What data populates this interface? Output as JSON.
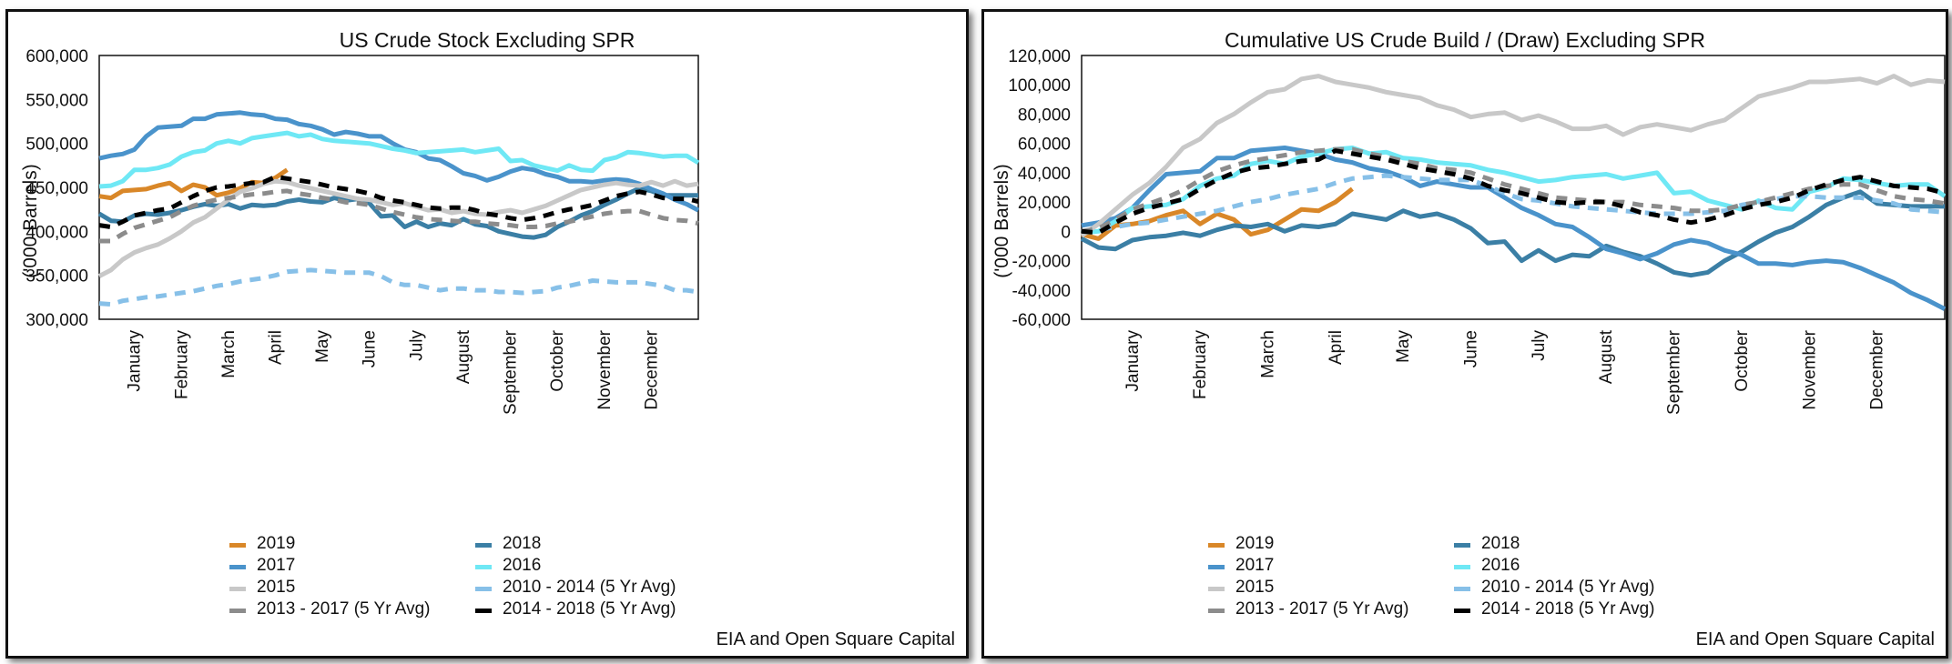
{
  "chart_data": [
    {
      "type": "line",
      "title": "US Crude Stock Excluding SPR",
      "ylabel": "('000 Barrels)",
      "xlabel": "",
      "source": "EIA and Open Square Capital",
      "ylim": [
        300000,
        600000
      ],
      "yticks": [
        "600,000",
        "550,000",
        "500,000",
        "450,000",
        "400,000",
        "350,000",
        "300,000"
      ],
      "ytick_values": [
        600000,
        550000,
        500000,
        450000,
        400000,
        350000,
        300000
      ],
      "x_range": [
        1,
        52
      ],
      "month_labels": [
        "January",
        "February",
        "March",
        "April",
        "May",
        "June",
        "July",
        "August",
        "September",
        "October",
        "November",
        "December"
      ],
      "month_weeks": [
        4,
        8,
        12,
        16,
        20,
        24,
        28,
        32,
        36,
        40,
        44,
        48
      ],
      "grid": false,
      "legend_position": "bottom",
      "series": [
        {
          "name": "2019",
          "color": "#d98728",
          "dash": "solid",
          "values": [
            440000,
            438000,
            446000,
            447000,
            448000,
            452000,
            455000,
            446000,
            453000,
            450000,
            441000,
            444000,
            449000,
            456000,
            455000,
            461000,
            470000
          ]
        },
        {
          "name": "2018",
          "color": "#3b7fa5",
          "dash": "solid",
          "values": [
            420000,
            412000,
            411000,
            418000,
            420000,
            419000,
            421000,
            424000,
            428000,
            431000,
            429000,
            431000,
            426000,
            430000,
            429000,
            430000,
            434000,
            436000,
            434000,
            433000,
            438000,
            435000,
            437000,
            432000,
            417000,
            418000,
            405000,
            411000,
            405000,
            409000,
            407000,
            414000,
            408000,
            406000,
            400000,
            397000,
            394000,
            393000,
            396000,
            405000,
            411000,
            418000,
            423000,
            430000,
            436000,
            443000,
            449000,
            446000,
            441000,
            441000,
            441000,
            441000
          ]
        },
        {
          "name": "2017",
          "color": "#4a93cb",
          "dash": "solid",
          "values": [
            483000,
            486000,
            488000,
            493000,
            508000,
            518000,
            519000,
            520000,
            528000,
            528000,
            533000,
            534000,
            535000,
            533000,
            532000,
            528000,
            527000,
            522000,
            520000,
            516000,
            510000,
            513000,
            511000,
            508000,
            508000,
            500000,
            493000,
            490000,
            483000,
            481000,
            474000,
            466000,
            463000,
            458000,
            462000,
            468000,
            472000,
            470000,
            465000,
            462000,
            457000,
            457000,
            456000,
            458000,
            459000,
            458000,
            454000,
            448000,
            443000,
            436000,
            431000,
            424000
          ]
        },
        {
          "name": "2016",
          "color": "#6fe8f5",
          "dash": "solid",
          "values": [
            451000,
            452000,
            457000,
            470000,
            470000,
            472000,
            476000,
            485000,
            490000,
            492000,
            500000,
            503000,
            500000,
            506000,
            508000,
            510000,
            512000,
            508000,
            510000,
            505000,
            503000,
            502000,
            501000,
            500000,
            497000,
            494000,
            492000,
            489000,
            490000,
            491000,
            492000,
            493000,
            490000,
            492000,
            494000,
            480000,
            481000,
            475000,
            472000,
            469000,
            475000,
            470000,
            469000,
            481000,
            484000,
            490000,
            489000,
            487000,
            485000,
            486000,
            486000,
            478000
          ]
        },
        {
          "name": "2015",
          "color": "#c8c8c8",
          "dash": "solid",
          "values": [
            349000,
            356000,
            368000,
            376000,
            381000,
            385000,
            392000,
            400000,
            410000,
            416000,
            426000,
            436000,
            445000,
            449000,
            454000,
            457000,
            456000,
            452000,
            449000,
            446000,
            443000,
            440000,
            437000,
            436000,
            433000,
            430000,
            432000,
            428000,
            424000,
            425000,
            421000,
            423000,
            420000,
            419000,
            422000,
            424000,
            421000,
            425000,
            429000,
            435000,
            441000,
            447000,
            450000,
            453000,
            455000,
            453000,
            452000,
            456000,
            452000,
            457000,
            452000,
            454000
          ]
        },
        {
          "name": "2010 - 2014  (5 Yr Avg)",
          "color": "#87c0e8",
          "dash": "dashed",
          "values": [
            318000,
            317000,
            321000,
            323000,
            325000,
            326000,
            328000,
            330000,
            332000,
            335000,
            338000,
            340000,
            343000,
            345000,
            347000,
            350000,
            354000,
            355000,
            356000,
            355000,
            354000,
            353000,
            353000,
            353000,
            349000,
            342000,
            339000,
            339000,
            336000,
            333000,
            335000,
            335000,
            333000,
            333000,
            331000,
            331000,
            330000,
            331000,
            332000,
            336000,
            338000,
            341000,
            344000,
            343000,
            342000,
            342000,
            342000,
            340000,
            338000,
            333000,
            333000,
            331000
          ]
        },
        {
          "name": "2013 - 2017 (5 Yr Avg)",
          "color": "#8c8c8c",
          "dash": "dashed",
          "values": [
            389000,
            389000,
            397000,
            404000,
            408000,
            412000,
            416000,
            423000,
            429000,
            433000,
            436000,
            438000,
            440000,
            442000,
            443000,
            445000,
            446000,
            443000,
            441000,
            438000,
            436000,
            433000,
            432000,
            430000,
            426000,
            422000,
            419000,
            416000,
            414000,
            413000,
            412000,
            411000,
            411000,
            409000,
            408000,
            407000,
            405000,
            405000,
            406000,
            409000,
            411000,
            414000,
            417000,
            420000,
            422000,
            423000,
            423000,
            419000,
            415000,
            413000,
            412000,
            409000
          ]
        },
        {
          "name": "2014 - 2018 (5 Yr Avg)",
          "color": "#000000",
          "dash": "dashed",
          "values": [
            407000,
            405000,
            411000,
            418000,
            421000,
            424000,
            426000,
            433000,
            440000,
            446000,
            450000,
            451000,
            453000,
            455000,
            456000,
            462000,
            460000,
            458000,
            456000,
            453000,
            450000,
            448000,
            446000,
            443000,
            438000,
            435000,
            433000,
            430000,
            427000,
            426000,
            427000,
            427000,
            424000,
            420000,
            418000,
            415000,
            413000,
            415000,
            418000,
            422000,
            425000,
            427000,
            430000,
            435000,
            440000,
            443000,
            445000,
            442000,
            438000,
            437000,
            437000,
            434000
          ]
        }
      ]
    },
    {
      "type": "line",
      "title": "Cumulative US Crude Build / (Draw) Excluding SPR",
      "ylabel": "('000 Barrels)",
      "xlabel": "",
      "source": "EIA and Open Square Capital",
      "ylim": [
        -60000,
        120000
      ],
      "yticks": [
        "120,000",
        "100,000",
        "80,000",
        "60,000",
        "40,000",
        "20,000",
        "0",
        "-20,000",
        "-40,000",
        "-60,000"
      ],
      "ytick_values": [
        120000,
        100000,
        80000,
        60000,
        40000,
        20000,
        0,
        -20000,
        -40000,
        -60000
      ],
      "x_range": [
        1,
        52
      ],
      "month_labels": [
        "January",
        "February",
        "March",
        "April",
        "May",
        "June",
        "July",
        "August",
        "September",
        "October",
        "November",
        "December"
      ],
      "month_weeks": [
        4,
        8,
        12,
        16,
        20,
        24,
        28,
        32,
        36,
        40,
        44,
        48
      ],
      "grid": false,
      "legend_position": "bottom",
      "series": [
        {
          "name": "2019",
          "color": "#d98728",
          "dash": "solid",
          "values": [
            -2000,
            -5000,
            4000,
            5000,
            7000,
            11000,
            14000,
            5000,
            12000,
            8000,
            -2000,
            1000,
            8000,
            15000,
            14000,
            20000,
            29000
          ]
        },
        {
          "name": "2018",
          "color": "#3b7fa5",
          "dash": "solid",
          "values": [
            -5000,
            -11000,
            -12000,
            -6000,
            -4000,
            -3000,
            -1000,
            -3000,
            1000,
            4000,
            3000,
            5000,
            0,
            4000,
            3000,
            5000,
            12000,
            10000,
            8000,
            14000,
            10000,
            12000,
            8000,
            2000,
            -8000,
            -7000,
            -20000,
            -13000,
            -20000,
            -16000,
            -17000,
            -10000,
            -14000,
            -17000,
            -22000,
            -28000,
            -30000,
            -28000,
            -20000,
            -14000,
            -7000,
            -1000,
            3000,
            10000,
            18000,
            23000,
            27000,
            19000,
            18000,
            17000,
            17000,
            17000
          ]
        },
        {
          "name": "2017",
          "color": "#4a93cb",
          "dash": "solid",
          "values": [
            4000,
            6000,
            9000,
            16000,
            28000,
            39000,
            40000,
            41000,
            50000,
            50000,
            55000,
            56000,
            57000,
            55000,
            53000,
            49000,
            47000,
            43000,
            41000,
            37000,
            31000,
            34000,
            32000,
            30000,
            30000,
            23000,
            16000,
            11000,
            5000,
            3000,
            -4000,
            -12000,
            -15000,
            -19000,
            -15000,
            -9000,
            -6000,
            -8000,
            -13000,
            -16000,
            -22000,
            -22000,
            -23000,
            -21000,
            -20000,
            -21000,
            -25000,
            -30000,
            -35000,
            -42000,
            -47000,
            -53000
          ]
        },
        {
          "name": "2016",
          "color": "#6fe8f5",
          "dash": "solid",
          "values": [
            -1000,
            0,
            7000,
            16000,
            17000,
            18000,
            22000,
            31000,
            36000,
            38000,
            46000,
            48000,
            46000,
            51000,
            53000,
            56000,
            57000,
            53000,
            54000,
            50000,
            49000,
            47000,
            46000,
            45000,
            42000,
            40000,
            37000,
            34000,
            35000,
            37000,
            38000,
            39000,
            36000,
            38000,
            40000,
            26000,
            27000,
            21000,
            18000,
            15000,
            21000,
            16000,
            15000,
            27000,
            30000,
            36000,
            35000,
            33000,
            31000,
            32000,
            32000,
            24000
          ]
        },
        {
          "name": "2015",
          "color": "#c8c8c8",
          "dash": "solid",
          "values": [
            -3000,
            5000,
            15000,
            25000,
            33000,
            44000,
            57000,
            63000,
            74000,
            80000,
            88000,
            95000,
            97000,
            104000,
            106000,
            102000,
            100000,
            98000,
            95000,
            93000,
            91000,
            86000,
            83000,
            78000,
            80000,
            81000,
            76000,
            79000,
            75000,
            70000,
            70000,
            72000,
            66000,
            71000,
            73000,
            71000,
            69000,
            73000,
            76000,
            84000,
            92000,
            95000,
            98000,
            102000,
            102000,
            103000,
            104000,
            101000,
            106000,
            100000,
            103000,
            102000
          ]
        },
        {
          "name": "2010 - 2014  (5 Yr Avg)",
          "color": "#87c0e8",
          "dash": "dashed",
          "values": [
            0,
            1000,
            3000,
            5000,
            6000,
            8000,
            10000,
            12000,
            14000,
            17000,
            20000,
            22000,
            25000,
            27000,
            29000,
            33000,
            36000,
            37000,
            38000,
            37000,
            36000,
            35000,
            35000,
            35000,
            31000,
            26000,
            22000,
            21000,
            19000,
            17000,
            16000,
            15000,
            14000,
            13000,
            12000,
            12000,
            12000,
            13000,
            14000,
            18000,
            20000,
            22000,
            24000,
            24000,
            23000,
            23000,
            23000,
            21000,
            19000,
            15000,
            14000,
            13000
          ]
        },
        {
          "name": "2013 - 2017 (5 Yr Avg)",
          "color": "#8c8c8c",
          "dash": "dashed",
          "values": [
            0,
            2000,
            8000,
            15000,
            19000,
            23000,
            28000,
            35000,
            41000,
            45000,
            48000,
            50000,
            52000,
            54000,
            55000,
            56000,
            56000,
            53000,
            51000,
            48000,
            46000,
            43000,
            42000,
            40000,
            36000,
            32000,
            29000,
            26000,
            23000,
            22000,
            21000,
            20000,
            20000,
            18000,
            17000,
            16000,
            14000,
            14000,
            15000,
            18000,
            20000,
            23000,
            26000,
            29000,
            31000,
            32000,
            32000,
            28000,
            24000,
            22000,
            21000,
            19000
          ]
        },
        {
          "name": "2014 - 2018 (5 Yr Avg)",
          "color": "#000000",
          "dash": "dashed",
          "values": [
            0,
            -1000,
            6000,
            12000,
            16000,
            19000,
            22000,
            29000,
            35000,
            40000,
            43000,
            44000,
            46000,
            48000,
            49000,
            55000,
            53000,
            51000,
            49000,
            46000,
            43000,
            41000,
            39000,
            36000,
            31000,
            28000,
            26000,
            23000,
            20000,
            19000,
            20000,
            20000,
            17000,
            13000,
            11000,
            8000,
            6000,
            8000,
            11000,
            15000,
            18000,
            20000,
            23000,
            28000,
            32000,
            35000,
            37000,
            34000,
            31000,
            30000,
            29000,
            26000
          ]
        }
      ]
    }
  ]
}
